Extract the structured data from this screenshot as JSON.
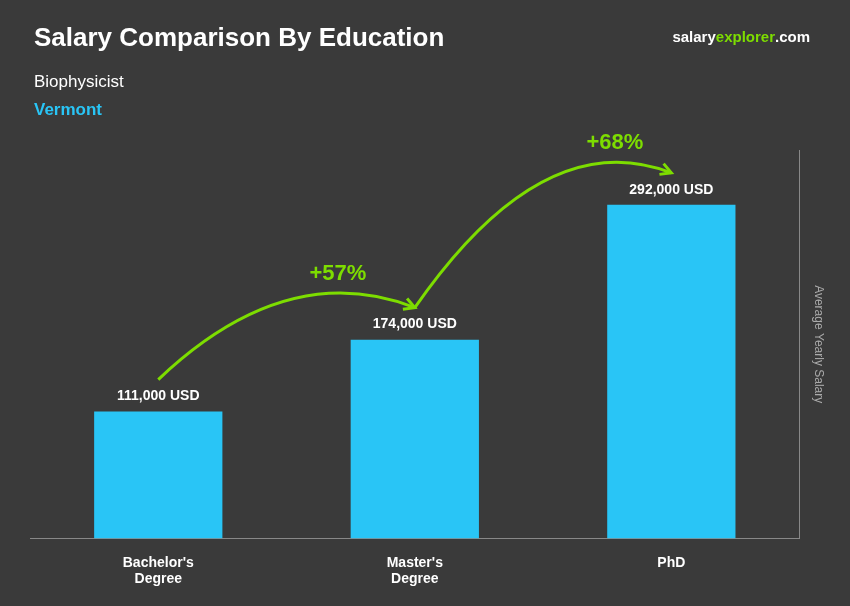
{
  "chart_data": {
    "type": "bar",
    "title": "Salary Comparison By Education",
    "subtitle": [
      "Biophysicist",
      "Vermont"
    ],
    "categories": [
      "Bachelor's\nDegree",
      "Master's\nDegree",
      "PhD"
    ],
    "values": [
      111000,
      174000,
      292000
    ],
    "value_labels": [
      "111,000 USD",
      "174,000 USD",
      "292,000 USD"
    ],
    "data_labels": true,
    "color": "#29c5f6",
    "ylabel": "Average Yearly Salary",
    "ylim": [
      0,
      340000
    ],
    "tick_labels": "x",
    "grid": false,
    "annotations": [
      {
        "text": "+57%",
        "from": "Bachelor's\nDegree",
        "to": "Master's\nDegree"
      },
      {
        "text": "+68%",
        "from": "Master's\nDegree",
        "to": "PhD"
      },
      {
        "text": [
          "salary",
          "explorer",
          ".com"
        ]
      }
    ]
  }
}
